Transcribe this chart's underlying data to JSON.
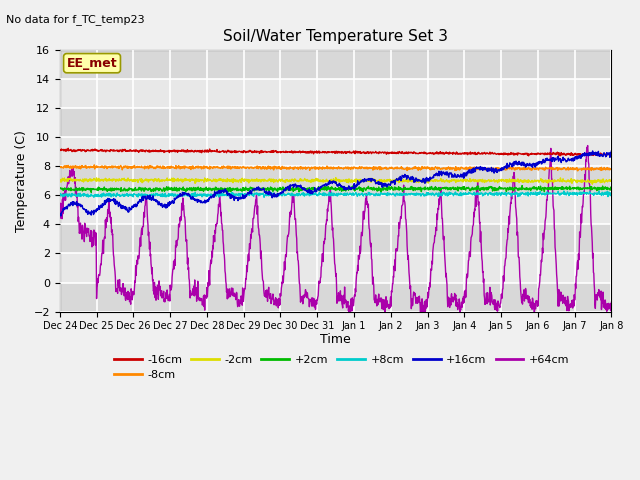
{
  "title": "Soil/Water Temperature Set 3",
  "xlabel": "Time",
  "ylabel": "Temperature (C)",
  "ylim": [
    -2,
    16
  ],
  "yticks": [
    -2,
    0,
    2,
    4,
    6,
    8,
    10,
    12,
    14,
    16
  ],
  "annotation_text": "No data for f_TC_temp23",
  "label_box_text": "EE_met",
  "fig_bg_color": "#f0f0f0",
  "plot_bg_color": "#e8e8e8",
  "band_colors": [
    "#d8d8d8",
    "#e8e8e8"
  ],
  "colors": {
    "-16cm": "#cc0000",
    "-8cm": "#ff8800",
    "-2cm": "#dddd00",
    "+2cm": "#00bb00",
    "+8cm": "#00cccc",
    "+16cm": "#0000cc",
    "+64cm": "#aa00aa"
  },
  "xtick_labels": [
    "Dec 24",
    "Dec 25",
    "Dec 26",
    "Dec 27",
    "Dec 28",
    "Dec 29",
    "Dec 30",
    "Dec 31",
    "Jan 1",
    "Jan 2",
    "Jan 3",
    "Jan 4",
    "Jan 5",
    "Jan 6",
    "Jan 7",
    "Jan 8"
  ],
  "n_points": 1440,
  "n_days": 15
}
